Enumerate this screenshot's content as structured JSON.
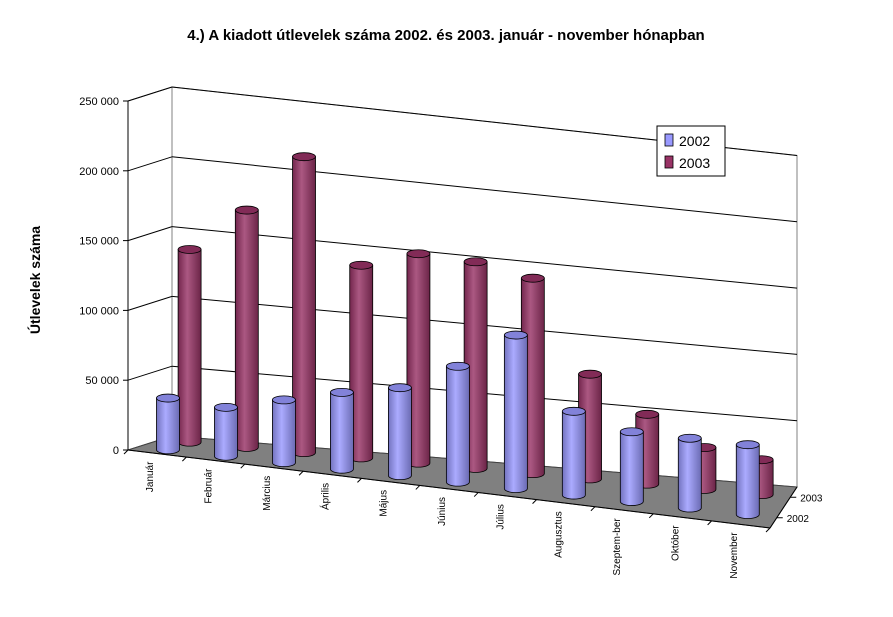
{
  "chart_data": {
    "type": "bar",
    "title": "4.) A  kiadott útlevelek száma 2002. és 2003. január - november hónapban",
    "ylabel": "Útlevelek száma",
    "xlabel": "",
    "ylim": [
      0,
      250000
    ],
    "yticks": [
      0,
      50000,
      100000,
      150000,
      200000,
      250000
    ],
    "ytick_labels": [
      "0",
      "50 000",
      "100 000",
      "150 000",
      "200 000",
      "250 000"
    ],
    "categories": [
      "Január",
      "Február",
      "Március",
      "Április",
      "Május",
      "Június",
      "Július",
      "Augusztus",
      "Szeptem-ber",
      "Október",
      "November"
    ],
    "series": [
      {
        "name": "2002",
        "color": "#9999ff",
        "values": [
          37000,
          35000,
          45000,
          55000,
          63000,
          83000,
          110000,
          60000,
          50000,
          50000,
          50000
        ]
      },
      {
        "name": "2003",
        "color": "#993366",
        "values": [
          138000,
          170000,
          212000,
          138000,
          150000,
          148000,
          140000,
          75000,
          50000,
          30000,
          25000
        ]
      }
    ],
    "depth_labels": [
      "2003",
      "2002"
    ],
    "legend_position": "top-right",
    "grid": true
  }
}
